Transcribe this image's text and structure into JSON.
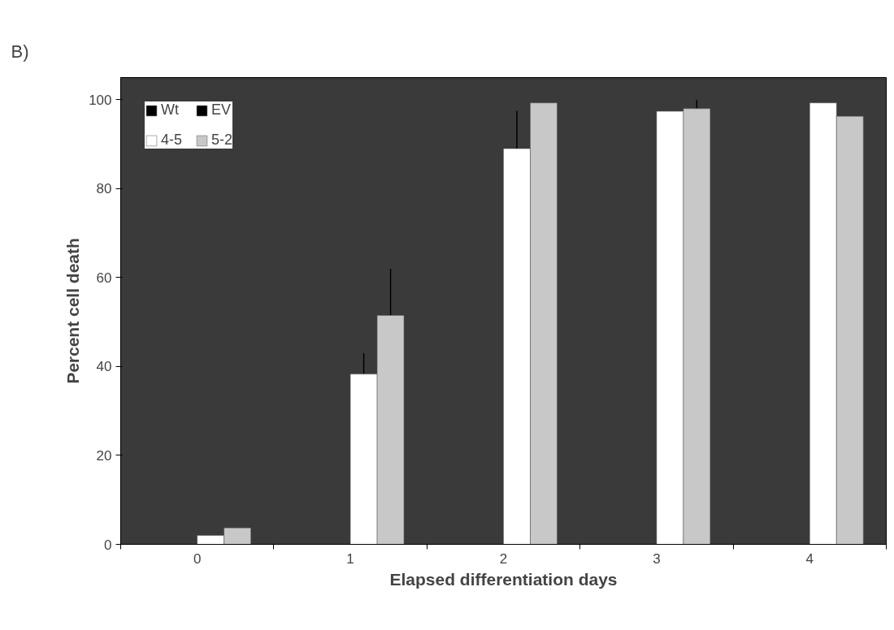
{
  "chart_data": {
    "type": "bar",
    "xlabel": "Elapsed differentiation days",
    "ylabel": "Percent cell death",
    "categories": [
      "0",
      "1",
      "2",
      "3",
      "4"
    ],
    "series": [
      {
        "name": "Wt",
        "color": "#000000",
        "values": [
          null,
          null,
          null,
          null,
          null
        ]
      },
      {
        "name": "EV",
        "color": "#000000",
        "values": [
          null,
          null,
          null,
          null,
          null
        ]
      },
      {
        "name": "4-5",
        "color": "#ffffff",
        "values": [
          2,
          38.3,
          89,
          97.4,
          99.3
        ],
        "errors": [
          null,
          [
            38.3,
            43
          ],
          [
            89,
            97.5
          ],
          null,
          null
        ]
      },
      {
        "name": "5-2",
        "color": "#c8c8c8",
        "values": [
          3.7,
          51.5,
          99.3,
          98,
          96.3
        ],
        "errors": [
          null,
          [
            51.5,
            62
          ],
          null,
          [
            98,
            100
          ],
          null
        ]
      }
    ],
    "ylim": [
      0,
      105
    ],
    "yticks": [
      0,
      20,
      40,
      60,
      80,
      100
    ],
    "grid": false,
    "legend": "top left",
    "annotations": [
      "B)"
    ]
  }
}
